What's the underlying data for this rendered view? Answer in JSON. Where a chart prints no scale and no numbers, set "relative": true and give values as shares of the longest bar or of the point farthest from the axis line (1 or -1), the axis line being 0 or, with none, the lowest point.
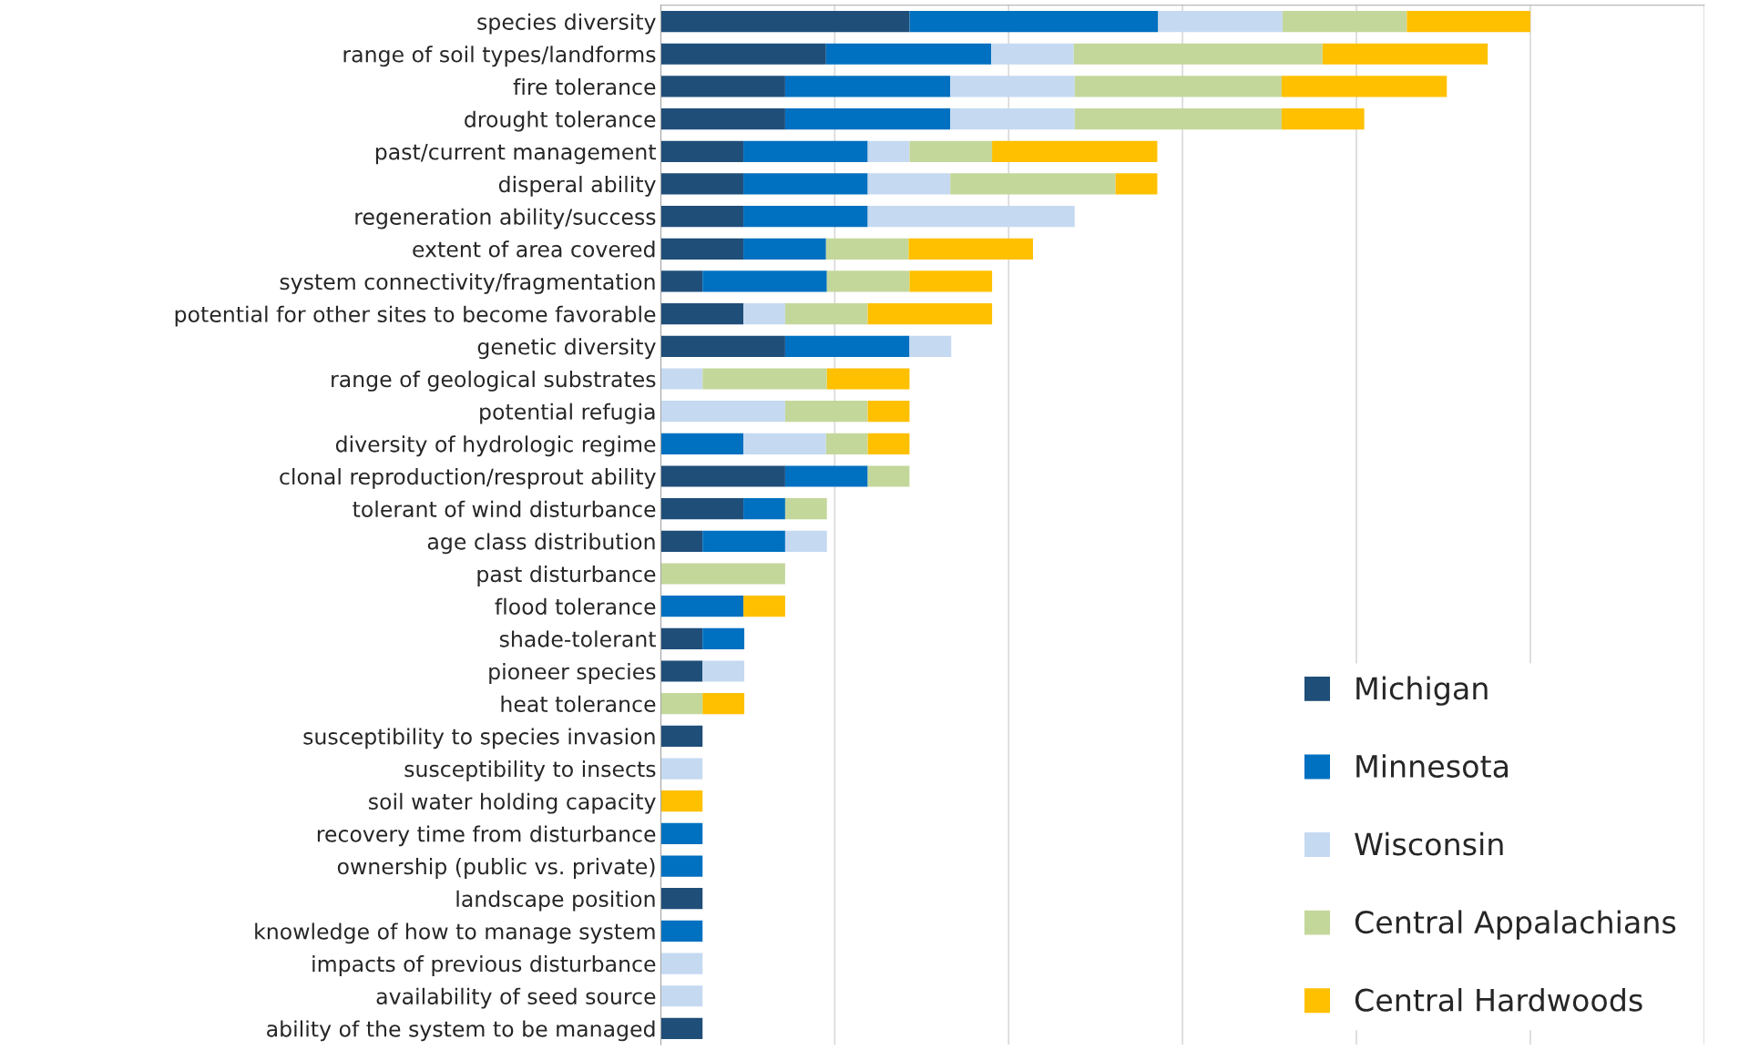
{
  "chart_data": {
    "type": "bar",
    "orientation": "horizontal",
    "stacked": true,
    "relative": true,
    "grid": "x",
    "legend": "lower right",
    "categories": [
      "species diversity",
      "range of soil types/landforms",
      "fire tolerance",
      "drought tolerance",
      "past/current management",
      "disperal ability",
      "regeneration ability/success",
      "extent of area covered",
      "system connectivity/fragmentation",
      "potential for other sites to become favorable",
      "genetic diversity",
      "range of geological substrates",
      "potential refugia",
      "diversity of hydrologic regime",
      "clonal reproduction/resprout ability",
      "tolerant of wind disturbance",
      "age class distribution",
      "past disturbance",
      "flood tolerance",
      "shade-tolerant",
      "pioneer species",
      "heat tolerance",
      "susceptibility to species invasion",
      "susceptibility to insects",
      "soil water holding capacity",
      "recovery time from disturbance",
      "ownership (public vs. private)",
      "landscape position",
      "knowledge of how to manage system",
      "impacts of previous disturbance",
      "availability of seed source",
      "ability of the system to be managed"
    ],
    "series": [
      {
        "name": "Michigan",
        "color": "#1f4e79",
        "values": [
          0.286,
          0.19,
          0.143,
          0.143,
          0.095,
          0.095,
          0.095,
          0.095,
          0.048,
          0.095,
          0.143,
          null,
          null,
          null,
          0.143,
          0.095,
          0.048,
          null,
          null,
          0.048,
          0.048,
          null,
          0.048,
          null,
          null,
          null,
          null,
          0.048,
          null,
          null,
          null,
          0.048
        ]
      },
      {
        "name": "Minnesota",
        "color": "#0070c0",
        "values": [
          0.286,
          0.19,
          0.19,
          0.19,
          0.143,
          0.143,
          0.143,
          0.095,
          0.143,
          null,
          0.143,
          null,
          null,
          0.095,
          0.095,
          0.048,
          0.095,
          null,
          0.095,
          0.048,
          null,
          null,
          null,
          null,
          null,
          0.048,
          0.048,
          null,
          0.048,
          null,
          null,
          null
        ]
      },
      {
        "name": "Wisconsin",
        "color": "#c5d9f1",
        "values": [
          0.143,
          0.095,
          0.143,
          0.143,
          0.048,
          0.095,
          0.238,
          null,
          null,
          0.048,
          0.048,
          0.048,
          0.143,
          0.095,
          null,
          null,
          0.048,
          null,
          null,
          null,
          0.048,
          null,
          null,
          0.048,
          null,
          null,
          null,
          null,
          null,
          0.048,
          0.048,
          null
        ]
      },
      {
        "name": "Central Appalachians",
        "color": "#c4d79b",
        "values": [
          0.143,
          0.286,
          0.238,
          0.238,
          0.095,
          0.19,
          null,
          0.095,
          0.095,
          0.095,
          null,
          0.143,
          0.095,
          0.048,
          0.048,
          0.048,
          null,
          0.143,
          null,
          null,
          null,
          0.048,
          null,
          null,
          null,
          null,
          null,
          null,
          null,
          null,
          null,
          null
        ]
      },
      {
        "name": "Central Hardwoods",
        "color": "#ffc000",
        "values": [
          0.142,
          0.19,
          0.19,
          0.095,
          0.19,
          0.048,
          null,
          0.143,
          0.095,
          0.143,
          null,
          0.095,
          0.048,
          0.048,
          null,
          null,
          null,
          null,
          0.048,
          null,
          null,
          0.048,
          null,
          null,
          0.048,
          null,
          null,
          null,
          null,
          null,
          null,
          null
        ]
      }
    ]
  }
}
